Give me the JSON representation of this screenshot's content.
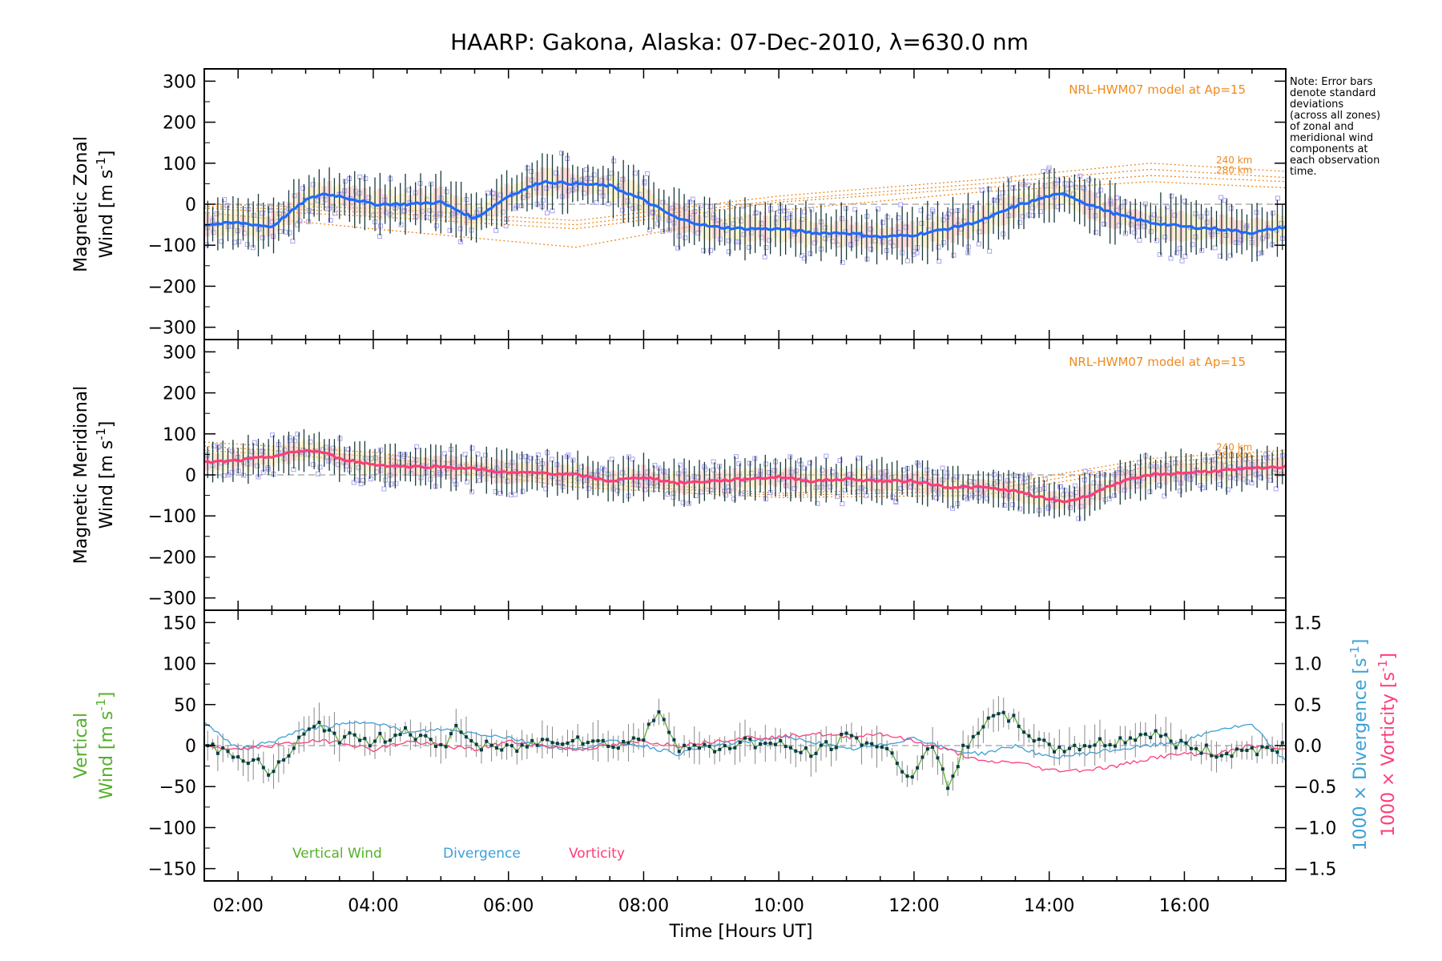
{
  "title": "HAARP: Gakona,  Alaska: 07-Dec-2010, λ=630.0 nm",
  "note": [
    "Note: Error bars",
    "denote standard",
    "deviations",
    "(across all zones)",
    "of zonal and",
    "meridional wind",
    "components at",
    "each observation",
    "time."
  ],
  "colors": {
    "zonal": "#1e6bff",
    "meridional": "#ff3d78",
    "vertical": "#55b02a",
    "divergence": "#3ba0d8",
    "vorticity": "#ff3d78",
    "model": "#f08a1e",
    "zone_scatter": "#a9a3f0",
    "error_bar": "#1a3a3a"
  },
  "chart_data": [
    {
      "type": "line",
      "panel": "zonal",
      "ylabel_lines": [
        "Magnetic Zonal",
        "Wind [m s^-1]"
      ],
      "ylim": [
        -330,
        330
      ],
      "yticks": [
        -300,
        -200,
        -100,
        0,
        100,
        200,
        300
      ],
      "xlim": [
        1.5,
        17.5
      ],
      "model_label": "NRL-HWM07 model at Ap=15",
      "model_level_labels": [
        "240 km",
        "280 km"
      ],
      "series": [
        {
          "name": "Magnetic Zonal Wind",
          "x": [
            1.5,
            2.0,
            2.5,
            3.0,
            3.25,
            3.5,
            4.0,
            4.5,
            5.0,
            5.5,
            6.0,
            6.5,
            7.0,
            7.5,
            8.0,
            8.5,
            9.0,
            9.5,
            10.0,
            10.5,
            11.0,
            11.5,
            12.0,
            12.5,
            13.0,
            13.5,
            14.0,
            14.25,
            14.5,
            15.0,
            15.5,
            16.0,
            16.5,
            17.0,
            17.5
          ],
          "y": [
            -50,
            -45,
            -55,
            10,
            25,
            20,
            0,
            0,
            5,
            -35,
            20,
            55,
            50,
            45,
            10,
            -35,
            -55,
            -60,
            -60,
            -70,
            -70,
            -80,
            -75,
            -60,
            -40,
            -5,
            20,
            25,
            5,
            -25,
            -45,
            -55,
            -60,
            -70,
            -55
          ],
          "error": 65
        }
      ],
      "model_curves": [
        {
          "x": [
            1.5,
            4,
            7,
            10,
            13,
            15.5,
            17.5
          ],
          "y": [
            0,
            -10,
            -40,
            20,
            60,
            100,
            80
          ]
        },
        {
          "x": [
            1.5,
            4,
            7,
            10,
            13,
            15.5,
            17.5
          ],
          "y": [
            -5,
            -20,
            -50,
            10,
            50,
            85,
            65
          ]
        },
        {
          "x": [
            1.5,
            4,
            7,
            10,
            13,
            15.5,
            17.5
          ],
          "y": [
            -10,
            -30,
            -60,
            5,
            40,
            70,
            55
          ]
        },
        {
          "x": [
            1.5,
            4,
            7,
            10,
            13,
            15.5,
            17.5
          ],
          "y": [
            -20,
            -60,
            -105,
            -15,
            30,
            55,
            40
          ]
        }
      ]
    },
    {
      "type": "line",
      "panel": "meridional",
      "ylabel_lines": [
        "Magnetic Meridional",
        "Wind [m s^-1]"
      ],
      "ylim": [
        -330,
        330
      ],
      "yticks": [
        -300,
        -200,
        -100,
        0,
        100,
        200,
        300
      ],
      "xlim": [
        1.5,
        17.5
      ],
      "model_label": "NRL-HWM07 model at Ap=15",
      "model_level_labels": [
        "240 km",
        "280 km"
      ],
      "series": [
        {
          "name": "Magnetic Meridional Wind",
          "x": [
            1.5,
            2.0,
            2.5,
            3.0,
            3.25,
            3.5,
            4.0,
            4.5,
            5.0,
            5.5,
            6.0,
            6.5,
            7.0,
            7.5,
            8.0,
            8.5,
            9.0,
            9.5,
            10.0,
            10.5,
            11.0,
            11.5,
            12.0,
            12.5,
            13.0,
            13.5,
            14.0,
            14.25,
            14.5,
            15.0,
            15.5,
            16.0,
            16.5,
            17.0,
            17.5
          ],
          "y": [
            30,
            35,
            45,
            60,
            55,
            40,
            25,
            20,
            20,
            15,
            5,
            5,
            0,
            -15,
            -5,
            -20,
            -15,
            -10,
            -5,
            -15,
            -10,
            -15,
            -15,
            -30,
            -30,
            -40,
            -60,
            -65,
            -55,
            -20,
            0,
            5,
            10,
            15,
            20
          ],
          "error": 50
        }
      ],
      "model_curves": [
        {
          "x": [
            1.5,
            4,
            7,
            10,
            13,
            15.5,
            17.5
          ],
          "y": [
            80,
            55,
            -10,
            -45,
            -30,
            40,
            60
          ]
        },
        {
          "x": [
            1.5,
            4,
            7,
            10,
            13,
            15.5,
            17.5
          ],
          "y": [
            70,
            45,
            -20,
            -50,
            -40,
            30,
            50
          ]
        },
        {
          "x": [
            1.5,
            4,
            7,
            10,
            13,
            15.5,
            17.5
          ],
          "y": [
            60,
            35,
            -30,
            -55,
            -50,
            20,
            40
          ]
        }
      ]
    },
    {
      "type": "line",
      "panel": "vertical",
      "ylabel_lines": [
        "Vertical",
        "Wind [m s^-1]"
      ],
      "ylim": [
        -165,
        165
      ],
      "yticks": [
        -150,
        -100,
        -50,
        0,
        50,
        100,
        150
      ],
      "right_yticks": [
        "-1.5",
        "-1.0",
        "-0.5",
        "0.0",
        "0.5",
        "1.0",
        "1.5"
      ],
      "right_ylabels": [
        "1000 × Divergence [s^-1]",
        "1000 × Vorticity [s^-1]"
      ],
      "xlim": [
        1.5,
        17.5
      ],
      "xticks": [
        "02:00",
        "04:00",
        "06:00",
        "08:00",
        "10:00",
        "12:00",
        "14:00",
        "16:00"
      ],
      "xlabel": "Time [Hours UT]",
      "legend": [
        "Vertical Wind",
        "Divergence",
        "Vorticity"
      ],
      "series": [
        {
          "name": "Vertical Wind",
          "x": [
            1.5,
            2.0,
            2.25,
            2.5,
            3.0,
            3.25,
            3.5,
            4.0,
            4.5,
            5.0,
            5.25,
            5.5,
            6.0,
            6.5,
            7.0,
            7.5,
            8.0,
            8.25,
            8.5,
            9.0,
            9.5,
            10.0,
            10.5,
            11.0,
            11.5,
            12.0,
            12.25,
            12.5,
            12.75,
            13.0,
            13.25,
            13.5,
            14.0,
            14.5,
            15.0,
            15.5,
            16.0,
            16.5,
            17.0,
            17.5
          ],
          "y": [
            0,
            -10,
            -20,
            -35,
            15,
            25,
            10,
            5,
            20,
            -5,
            25,
            0,
            -5,
            5,
            10,
            0,
            10,
            45,
            0,
            -5,
            5,
            0,
            -10,
            10,
            0,
            -40,
            10,
            -55,
            0,
            25,
            35,
            30,
            -5,
            0,
            5,
            15,
            0,
            -10,
            -5,
            0
          ],
          "error": 20
        },
        {
          "name": "Divergence",
          "x": [
            1.5,
            2.0,
            2.5,
            3.0,
            3.5,
            4.0,
            4.5,
            5.0,
            5.5,
            6.0,
            6.5,
            7.0,
            7.5,
            8.0,
            8.5,
            9.0,
            9.5,
            10.0,
            10.5,
            11.0,
            11.5,
            12.0,
            12.5,
            13.0,
            13.5,
            14.0,
            14.5,
            15.0,
            15.5,
            16.0,
            16.5,
            17.0,
            17.5
          ],
          "y": [
            0.3,
            -0.05,
            0.05,
            0.2,
            0.25,
            0.3,
            0.15,
            0.2,
            0.15,
            0.1,
            0.0,
            -0.05,
            0.05,
            0.0,
            -0.1,
            0.0,
            0.05,
            0.1,
            0.05,
            -0.05,
            0.0,
            0.1,
            -0.05,
            -0.1,
            0.0,
            -0.15,
            -0.1,
            -0.05,
            0.0,
            0.05,
            0.2,
            0.25,
            -0.2
          ]
        },
        {
          "name": "Vorticity",
          "x": [
            1.5,
            2.0,
            2.5,
            3.0,
            3.5,
            4.0,
            4.5,
            5.0,
            5.5,
            6.0,
            6.5,
            7.0,
            7.5,
            8.0,
            8.5,
            9.0,
            9.5,
            10.0,
            10.5,
            11.0,
            11.5,
            12.0,
            12.5,
            13.0,
            13.5,
            14.0,
            14.5,
            15.0,
            15.5,
            16.0,
            16.5,
            17.0,
            17.5
          ],
          "y": [
            0.0,
            -0.05,
            0.0,
            0.05,
            0.05,
            -0.05,
            0.05,
            0.0,
            -0.05,
            0.05,
            0.0,
            -0.05,
            0.0,
            0.05,
            0.0,
            0.05,
            0.1,
            0.1,
            0.15,
            0.1,
            0.15,
            0.05,
            -0.05,
            -0.2,
            -0.2,
            -0.3,
            -0.3,
            -0.25,
            -0.15,
            -0.1,
            -0.1,
            0.0,
            -0.05
          ]
        }
      ]
    }
  ]
}
